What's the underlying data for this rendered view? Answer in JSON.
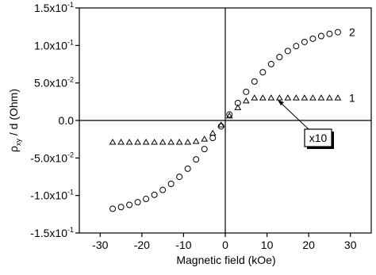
{
  "chart_data": {
    "type": "scatter",
    "x_label": "Magnetic field (kOe)",
    "y_label": {
      "symbol": "ρ",
      "subscript": "xy",
      "rest": " / d (Ohm)"
    },
    "xlim": [
      -35,
      35
    ],
    "ylim": [
      -0.15,
      0.15
    ],
    "xticks": [
      -30,
      -20,
      -10,
      0,
      10,
      20,
      30
    ],
    "yticks": [
      {
        "value": 0.15,
        "label": "1.5x10",
        "exponent": "-1"
      },
      {
        "value": 0.1,
        "label": "1.0x10",
        "exponent": "-1"
      },
      {
        "value": 0.05,
        "label": "5.0x10",
        "exponent": "-2"
      },
      {
        "value": 0,
        "label": "0.0"
      },
      {
        "value": -0.05,
        "label": "-5.0x10",
        "exponent": "-2"
      },
      {
        "value": -0.1,
        "label": "-1.0x10",
        "exponent": "-1"
      },
      {
        "value": -0.15,
        "label": "-1.5x10",
        "exponent": "-1"
      }
    ],
    "annotation": "x10",
    "series": [
      {
        "name": "2",
        "marker": "circle",
        "color": "#000000",
        "x": [
          -27,
          -25,
          -23,
          -21,
          -19,
          -17,
          -15,
          -13,
          -11,
          -9,
          -7,
          -5,
          -3,
          -1,
          1,
          3,
          5,
          7,
          9,
          11,
          13,
          15,
          17,
          19,
          21,
          23,
          25,
          27
        ],
        "values": [
          -0.1177,
          -0.1154,
          -0.1125,
          -0.109,
          -0.1046,
          -0.0991,
          -0.0926,
          -0.0845,
          -0.0751,
          -0.0643,
          -0.0519,
          -0.0382,
          -0.0233,
          -0.0079,
          0.0079,
          0.0233,
          0.0382,
          0.0519,
          0.0643,
          0.0751,
          0.0845,
          0.0926,
          0.0991,
          0.1046,
          0.109,
          0.1125,
          0.1154,
          0.1177
        ]
      },
      {
        "name": "1",
        "marker": "triangle",
        "color": "#000000",
        "x": [
          -27,
          -25,
          -23,
          -21,
          -19,
          -17,
          -15,
          -13,
          -11,
          -9,
          -7,
          -5,
          -3,
          -1,
          1,
          3,
          5,
          7,
          9,
          11,
          13,
          15,
          17,
          19,
          21,
          23,
          25,
          27
        ],
        "values": [
          -0.029,
          -0.029,
          -0.029,
          -0.029,
          -0.029,
          -0.029,
          -0.029,
          -0.029,
          -0.029,
          -0.029,
          -0.028,
          -0.025,
          -0.017,
          -0.006,
          0.006,
          0.017,
          0.026,
          0.03,
          0.03,
          0.03,
          0.03,
          0.03,
          0.03,
          0.03,
          0.03,
          0.03,
          0.03,
          0.03
        ]
      }
    ]
  }
}
